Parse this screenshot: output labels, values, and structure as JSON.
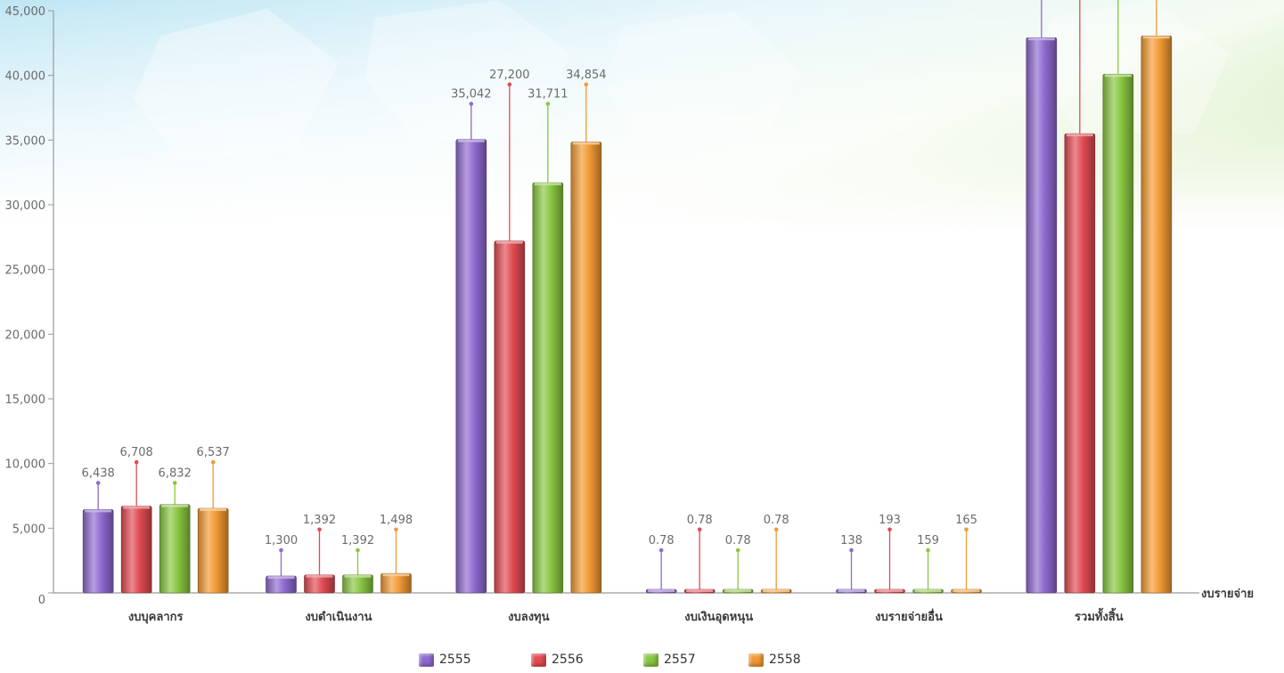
{
  "chart_data": {
    "type": "bar",
    "xlabel": "งบรายจ่าย",
    "ylabel": "",
    "ylim": [
      0,
      45000
    ],
    "yticks": [
      "0",
      "5,000",
      "10,000",
      "15,000",
      "20,000",
      "25,000",
      "30,000",
      "35,000",
      "40,000",
      "45,000"
    ],
    "grid": false,
    "legend_position": "bottom-center",
    "categories": [
      "งบบุคลากร",
      "งบดำเนินงาน",
      "งบลงทุน",
      "งบเงินอุดหนุน",
      "งบรายจ่ายอื่น",
      "รวมทั้งสิ้น"
    ],
    "series": [
      {
        "name": "2555",
        "color": "#8e6ad0",
        "values": [
          6438,
          1300,
          35042,
          0.78,
          138,
          42918
        ],
        "labels": [
          "6,438",
          "1,300",
          "35,042",
          "0.78",
          "138",
          ""
        ]
      },
      {
        "name": "2556",
        "color": "#e14b52",
        "values": [
          6708,
          1392,
          27200,
          0.78,
          193,
          35493
        ],
        "labels": [
          "6,708",
          "1,392",
          "27,200",
          "0.78",
          "193",
          ""
        ]
      },
      {
        "name": "2557",
        "color": "#89c641",
        "values": [
          6832,
          1392,
          31711,
          0.78,
          159,
          40094
        ],
        "labels": [
          "6,832",
          "1,392",
          "31,711",
          "0.78",
          "159",
          ""
        ]
      },
      {
        "name": "2558",
        "color": "#f29a33",
        "values": [
          6537,
          1498,
          34854,
          0.78,
          165,
          43054
        ],
        "labels": [
          "6,537",
          "1,498",
          "34,854",
          "0.78",
          "165",
          ""
        ]
      }
    ]
  }
}
